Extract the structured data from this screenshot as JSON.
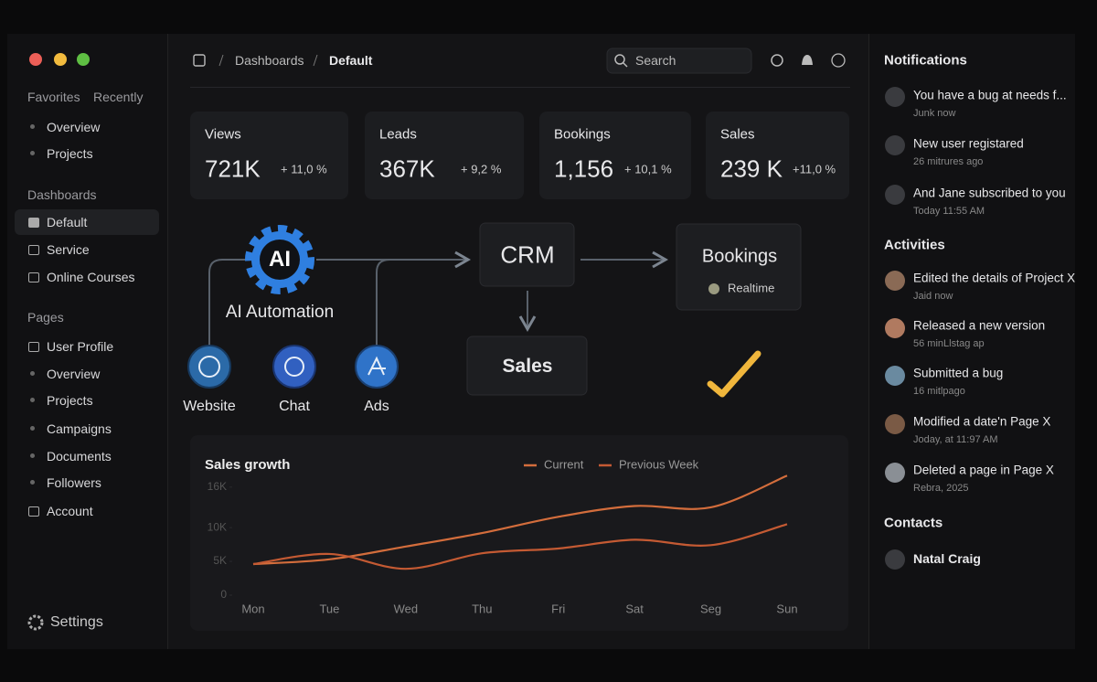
{
  "sidebar": {
    "tabs": [
      "Favorites",
      "Recently"
    ],
    "favorites": [
      "Overview",
      "Projects"
    ],
    "dashboards_title": "Dashboards",
    "dashboards": [
      "Default",
      "Service",
      "Online Courses"
    ],
    "pages_title": "Pages",
    "pages": [
      "User Profile",
      "Overview",
      "Projects",
      "Campaigns",
      "Documents",
      "Followers",
      "Account"
    ],
    "settings": "Settings"
  },
  "header": {
    "breadcrumb": [
      "Dashboards",
      "Default"
    ],
    "search": "Search"
  },
  "stats": [
    {
      "label": "Views",
      "value": "721K",
      "change": "+ 11,0 %"
    },
    {
      "label": "Leads",
      "value": "367K",
      "change": "+ 9,2 %"
    },
    {
      "label": "Bookings",
      "value": "1,156",
      "change": "+ 10,1 %"
    },
    {
      "label": "Sales",
      "value": "239 K",
      "change": "+11,0 %"
    }
  ],
  "flow": {
    "ai": "AI",
    "ai_label": "AI Automation",
    "crm": "CRM",
    "sales": "Sales",
    "bookings": "Bookings",
    "realtime": "Realtime",
    "sources": [
      "Website",
      "Chat",
      "Ads"
    ]
  },
  "chart_data": {
    "type": "line",
    "title": "Sales growth",
    "categories": [
      "Mon",
      "Tue",
      "Wed",
      "Thu",
      "Fri",
      "Sat",
      "Seg",
      "Sun"
    ],
    "series": [
      {
        "name": "Current",
        "color": "#d36d3c",
        "values": [
          4600,
          5300,
          7200,
          9200,
          11600,
          13200,
          13000,
          17700
        ]
      },
      {
        "name": "Previous Week",
        "color": "#c45a33",
        "values": [
          4600,
          6100,
          3900,
          6200,
          6900,
          8200,
          7400,
          10500
        ]
      }
    ],
    "ylim": [
      0,
      18000
    ],
    "yticks": [
      0,
      {
        "value": 5000,
        "label": "5K"
      },
      {
        "value": 10000,
        "label": "10K"
      },
      {
        "value": 16000,
        "label": "16K"
      }
    ],
    "grid": false
  },
  "notifications": {
    "title": "Notifications",
    "items": [
      {
        "text": "You have a bug at needs f...",
        "time": "Junk now"
      },
      {
        "text": "New user registared",
        "time": "26 mitrures ago"
      },
      {
        "text": "And Jane subscribed to you",
        "time": "Today 11:55 AM"
      }
    ]
  },
  "activities": {
    "title": "Activities",
    "items": [
      {
        "text": "Edited the details of Project X",
        "time": "Jaid now"
      },
      {
        "text": "Released a new version",
        "time": "56 minLlstag ap"
      },
      {
        "text": "Submitted a bug",
        "time": "16 mitlpago"
      },
      {
        "text": "Modified a date'n Page X",
        "time": "Joday, at 11:97 AM"
      },
      {
        "text": "Deleted a page in Page X",
        "time": "Rebra, 2025"
      }
    ]
  },
  "contacts": {
    "title": "Contacts",
    "items": [
      "Natal Craig"
    ]
  }
}
